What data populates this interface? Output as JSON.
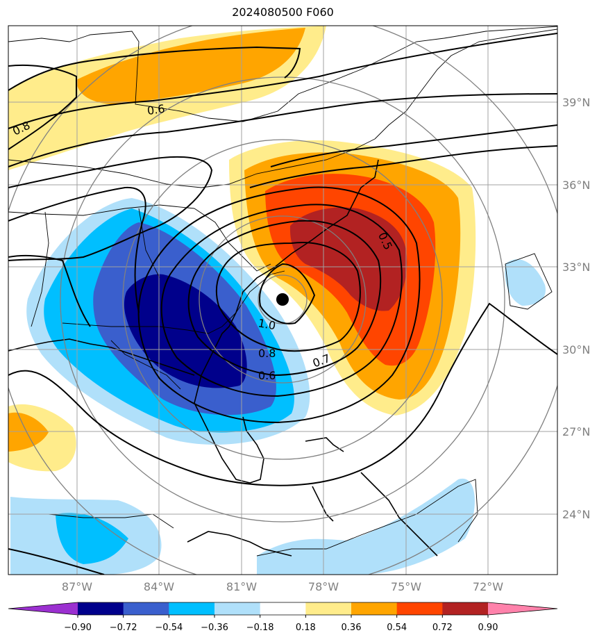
{
  "title": "2024080500 F060",
  "map": {
    "lat_labels": [
      "39°N",
      "36°N",
      "33°N",
      "30°N",
      "27°N",
      "24°N"
    ],
    "lon_labels": [
      "87°W",
      "84°W",
      "81°W",
      "78°W",
      "75°W",
      "72°W"
    ],
    "contour_labels": [
      "0.8",
      "0.6",
      "1.0",
      "0.8",
      "0.7",
      "0.6",
      "0.5"
    ],
    "marker": "storm-center-dot"
  },
  "colorbar": {
    "ticks": [
      "−0.90",
      "−0.72",
      "−0.54",
      "−0.36",
      "−0.18",
      "0.18",
      "0.36",
      "0.54",
      "0.72",
      "0.90"
    ],
    "colors": [
      "#9b30d0",
      "#00008b",
      "#3a5fcd",
      "#00bfff",
      "#b0e0fa",
      "#ffffff",
      "#ffec8b",
      "#ffa500",
      "#ff4500",
      "#b22222",
      "#ff82ab"
    ]
  }
}
